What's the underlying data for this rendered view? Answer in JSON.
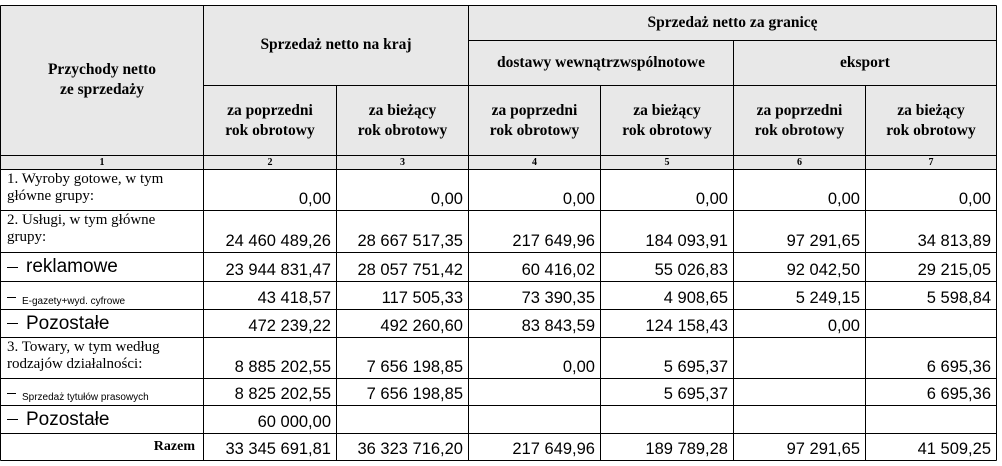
{
  "table": {
    "header": {
      "row_header": "Przychody netto\nze sprzedaży",
      "domestic": "Sprzedaż netto na kraj",
      "foreign": "Sprzedaż netto za granicę",
      "intra_eu": "dostawy wewnątrzwspólnotowe",
      "export": "eksport",
      "prev_year": "za poprzedni\nrok obrotowy",
      "curr_year": "za bieżący\nrok obrotowy"
    },
    "col_numbers": [
      "1",
      "2",
      "3",
      "4",
      "5",
      "6",
      "7"
    ],
    "rows": [
      {
        "label": "1. Wyroby gotowe, w tym\ngłówne grupy:",
        "values": [
          "0,00",
          "0,00",
          "0,00",
          "0,00",
          "0,00",
          "0,00"
        ]
      },
      {
        "label": "2. Usługi, w tym główne\ngrupy:",
        "values": [
          "24 460 489,26",
          "28 667 517,35",
          "217 649,96",
          "184 093,91",
          "97 291,65",
          "34 813,89"
        ]
      },
      {
        "label": "reklamowe",
        "values": [
          "23 944 831,47",
          "28 057 751,42",
          "60 416,02",
          "55 026,83",
          "92 042,50",
          "29 215,05"
        ]
      },
      {
        "label": "E-gazety+wyd. cyfrowe",
        "values": [
          "43 418,57",
          "117 505,33",
          "73 390,35",
          "4 908,65",
          "5 249,15",
          "5 598,84"
        ]
      },
      {
        "label": "Pozostałe",
        "values": [
          "472 239,22",
          "492 260,60",
          "83 843,59",
          "124 158,43",
          "0,00",
          ""
        ]
      },
      {
        "label": "3. Towary, w tym według\nrodzajów działalności:",
        "values": [
          "8 885 202,55",
          "7 656 198,85",
          "0,00",
          "5 695,37",
          "",
          "6 695,36"
        ]
      },
      {
        "label": "Sprzedaż tytułów prasowych",
        "values": [
          "8 825 202,55",
          "7 656 198,85",
          "",
          "5 695,37",
          "",
          "6 695,36"
        ]
      },
      {
        "label": "Pozostałe",
        "values": [
          "60 000,00",
          "",
          "",
          "",
          "",
          ""
        ]
      }
    ],
    "total": {
      "label": "Razem",
      "values": [
        "33 345 691,81",
        "36 323 716,20",
        "217 649,96",
        "189 789,28",
        "97 291,65",
        "41 509,25"
      ]
    }
  }
}
